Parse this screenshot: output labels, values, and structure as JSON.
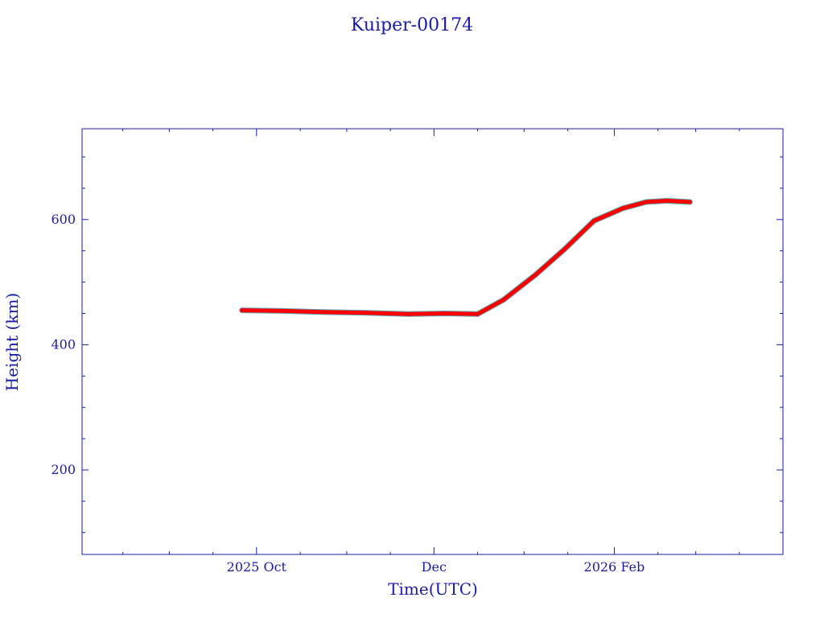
{
  "chart_data": {
    "type": "line",
    "title": "Kuiper-00174",
    "xlabel": "Time(UTC)",
    "ylabel": "Height (km)",
    "xlim": [
      "2025-08-02",
      "2026-03-31"
    ],
    "ylim": [
      65,
      745
    ],
    "x_ticks": [
      {
        "date": "2025-10-01",
        "label": "2025 Oct"
      },
      {
        "date": "2025-12-01",
        "label": "Dec"
      },
      {
        "date": "2026-02-01",
        "label": "2026 Feb"
      }
    ],
    "y_ticks": [
      {
        "value": 200,
        "label": "200"
      },
      {
        "value": 400,
        "label": "400"
      },
      {
        "value": 600,
        "label": "600"
      }
    ],
    "grid": false,
    "colors": {
      "axes": "#1a1aa8",
      "series": "#ff0000",
      "series_shadow": "#5fa8b8"
    },
    "series": [
      {
        "x": [
          "2025-09-26",
          "2025-10-10",
          "2025-10-25",
          "2025-11-08",
          "2025-11-22",
          "2025-12-05",
          "2025-12-16",
          "2025-12-25",
          "2026-01-05",
          "2026-01-15",
          "2026-01-25",
          "2026-02-04",
          "2026-02-12",
          "2026-02-19",
          "2026-02-27"
        ],
        "y": [
          455,
          454,
          452,
          451,
          449,
          450,
          449,
          472,
          512,
          553,
          598,
          618,
          628,
          630,
          628
        ]
      }
    ]
  }
}
